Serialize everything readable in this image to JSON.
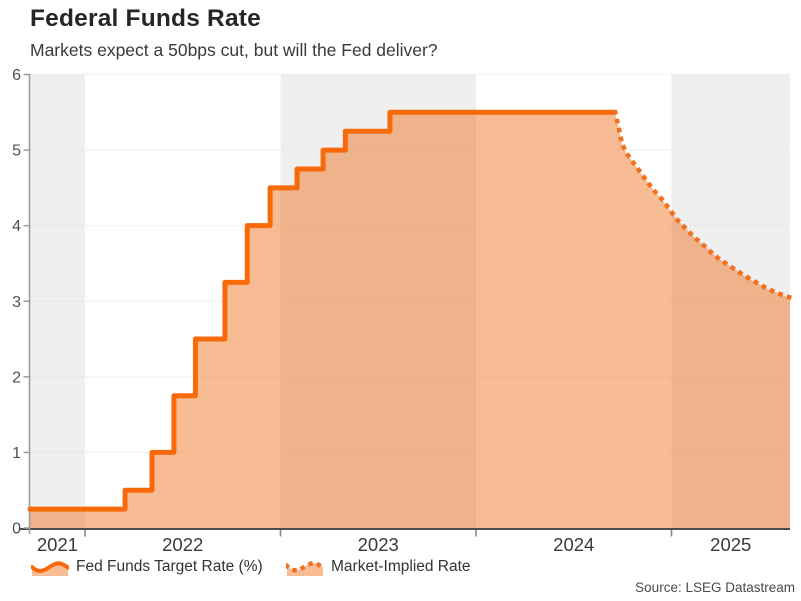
{
  "header": {
    "title": "Federal Funds Rate",
    "subtitle": "Markets expect a 50bps cut, but will the Fed deliver?"
  },
  "source_note": "Source: LSEG Datastream",
  "chart_data": {
    "type": "line",
    "title": "Federal Funds Rate",
    "subtitle": "Markets expect a 50bps cut, but will the Fed deliver?",
    "xlabel": "",
    "ylabel": "",
    "xlim": [
      2021.719,
      2025.606
    ],
    "ylim": [
      0,
      6
    ],
    "grid": "dotted-horizontal",
    "legend_position": "bottom",
    "y_ticks": [
      0,
      1,
      2,
      3,
      4,
      5,
      6
    ],
    "x_ticks": [
      {
        "label": "2021",
        "pos": 2021.8595
      },
      {
        "label": "2022",
        "pos": 2022.5
      },
      {
        "label": "2023",
        "pos": 2023.5
      },
      {
        "label": "2024",
        "pos": 2024.5
      },
      {
        "label": "2025",
        "pos": 2025.303
      }
    ],
    "x_boundaries": [
      2022,
      2023,
      2024,
      2025
    ],
    "bands": [
      {
        "from": 2021.719,
        "to": 2022.0
      },
      {
        "from": 2023.0,
        "to": 2024.0
      },
      {
        "from": 2025.0,
        "to": 2025.606
      }
    ],
    "series": [
      {
        "name": "Fed Funds Target Rate (%)",
        "style": "step-solid",
        "color": "#F8690A",
        "end_t": 2024.711,
        "points": [
          {
            "t": 2021.719,
            "v": 0.25
          },
          {
            "t": 2022.205,
            "v": 0.5
          },
          {
            "t": 2022.343,
            "v": 1.0
          },
          {
            "t": 2022.455,
            "v": 1.75
          },
          {
            "t": 2022.565,
            "v": 2.5
          },
          {
            "t": 2022.716,
            "v": 3.25
          },
          {
            "t": 2022.83,
            "v": 4.0
          },
          {
            "t": 2022.947,
            "v": 4.5
          },
          {
            "t": 2023.085,
            "v": 4.75
          },
          {
            "t": 2023.218,
            "v": 5.0
          },
          {
            "t": 2023.332,
            "v": 5.25
          },
          {
            "t": 2023.56,
            "v": 5.5
          }
        ]
      },
      {
        "name": "Market-Implied Rate",
        "style": "dotted",
        "color": "#F3701E",
        "points": [
          {
            "t": 2024.711,
            "v": 5.5
          },
          {
            "t": 2024.728,
            "v": 5.32
          },
          {
            "t": 2024.747,
            "v": 5.08
          },
          {
            "t": 2024.772,
            "v": 4.95
          },
          {
            "t": 2024.823,
            "v": 4.77
          },
          {
            "t": 2024.865,
            "v": 4.62
          },
          {
            "t": 2024.905,
            "v": 4.48
          },
          {
            "t": 2024.951,
            "v": 4.35
          },
          {
            "t": 2024.992,
            "v": 4.21
          },
          {
            "t": 2025.028,
            "v": 4.08
          },
          {
            "t": 2025.069,
            "v": 3.97
          },
          {
            "t": 2025.11,
            "v": 3.86
          },
          {
            "t": 2025.156,
            "v": 3.76
          },
          {
            "t": 2025.197,
            "v": 3.66
          },
          {
            "t": 2025.238,
            "v": 3.57
          },
          {
            "t": 2025.284,
            "v": 3.49
          },
          {
            "t": 2025.325,
            "v": 3.42
          },
          {
            "t": 2025.366,
            "v": 3.35
          },
          {
            "t": 2025.412,
            "v": 3.28
          },
          {
            "t": 2025.453,
            "v": 3.22
          },
          {
            "t": 2025.494,
            "v": 3.16
          },
          {
            "t": 2025.54,
            "v": 3.11
          },
          {
            "t": 2025.581,
            "v": 3.07
          },
          {
            "t": 2025.606,
            "v": 3.05
          }
        ]
      }
    ],
    "colors": {
      "fill": "rgba(239,106,20,0.45)",
      "band": "#EFEFEF",
      "gridline": "#DADADA",
      "x_axis": "#4d4d4d",
      "y_axis": "#9c9c9c",
      "tick": "#8a8a8a",
      "x_tick_label": "#3a3a3a",
      "y_tick_label": "#4f4f4f"
    }
  }
}
